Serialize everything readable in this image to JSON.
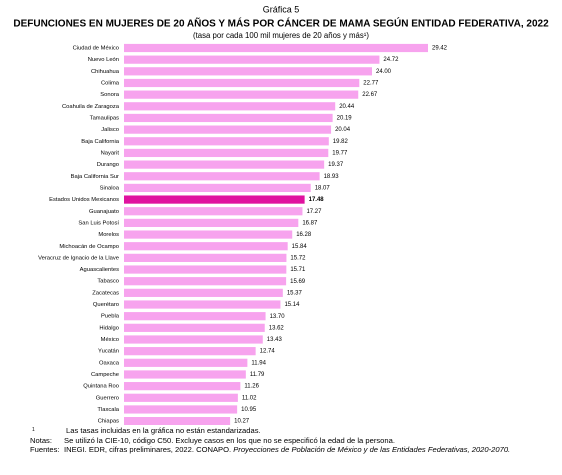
{
  "chart_data": {
    "type": "bar",
    "orientation": "horizontal",
    "label": "Gráfica 5",
    "title": "DEFUNCIONES EN MUJERES DE 20 AÑOS Y MÁS POR CÁNCER DE MAMA SEGÚN ENTIDAD FEDERATIVA, 2022",
    "subtitle": "(tasa por cada 100 mil mujeres de 20 años y más¹)",
    "categories": [
      "Ciudad de México",
      "Nuevo León",
      "Chihuahua",
      "Colima",
      "Sonora",
      "Coahuila de Zaragoza",
      "Tamaulipas",
      "Jalisco",
      "Baja California",
      "Nayarit",
      "Durango",
      "Baja California Sur",
      "Sinaloa",
      "Estados Unidos Mexicanos",
      "Guanajuato",
      "San Luis Potosí",
      "Morelos",
      "Michoacán de Ocampo",
      "Veracruz de Ignacio de la Llave",
      "Aguascalientes",
      "Tabasco",
      "Zacatecas",
      "Querétaro",
      "Puebla",
      "Hidalgo",
      "México",
      "Yucatán",
      "Oaxaca",
      "Campeche",
      "Quintana Roo",
      "Guerrero",
      "Tlaxcala",
      "Chiapas"
    ],
    "values": [
      29.42,
      24.72,
      24.0,
      22.77,
      22.67,
      20.44,
      20.19,
      20.04,
      19.82,
      19.77,
      19.37,
      18.93,
      18.07,
      17.48,
      17.27,
      16.87,
      16.28,
      15.84,
      15.72,
      15.71,
      15.69,
      15.37,
      15.14,
      13.7,
      13.62,
      13.43,
      12.74,
      11.94,
      11.79,
      11.26,
      11.02,
      10.95,
      10.27
    ],
    "value_labels": [
      "29.42",
      "24.72",
      "24.00",
      "22.77",
      "22.67",
      "20.44",
      "20.19",
      "20.04",
      "19.82",
      "19.77",
      "19.37",
      "18.93",
      "18.07",
      "17.48",
      "17.27",
      "16.87",
      "16.28",
      "15.84",
      "15.72",
      "15.71",
      "15.69",
      "15.37",
      "15.14",
      "13.70",
      "13.62",
      "13.43",
      "12.74",
      "11.94",
      "11.79",
      "11.26",
      "11.02",
      "10.95",
      "10.27"
    ],
    "colors": [
      "#f7a3ee",
      "#f7a3ee",
      "#f7a3ee",
      "#f7a3ee",
      "#f7a3ee",
      "#f7a3ee",
      "#f7a3ee",
      "#f7a3ee",
      "#f7a3ee",
      "#f7a3ee",
      "#f7a3ee",
      "#f7a3ee",
      "#f7a3ee",
      "#e0129f",
      "#f7a3ee",
      "#f7a3ee",
      "#f7a3ee",
      "#f7a3ee",
      "#f7a3ee",
      "#f7a3ee",
      "#f7a3ee",
      "#f7a3ee",
      "#f7a3ee",
      "#f7a3ee",
      "#f7a3ee",
      "#f7a3ee",
      "#f7a3ee",
      "#f7a3ee",
      "#f7a3ee",
      "#f7a3ee",
      "#f7a3ee",
      "#f7a3ee",
      "#f7a3ee"
    ],
    "notes": [
      {
        "label": "1",
        "text": [
          "Las tasas incluidas en la gráfica no están estandarizadas."
        ]
      },
      {
        "label": "Notas:",
        "text": [
          "Se utilizó la CIE-10, código C50. Excluye casos en los que no se especificó la edad de la persona."
        ]
      },
      {
        "label": "Fuentes:",
        "text": [
          "INEGI. EDR, cifras preliminares, 2022. CONAPO. ",
          "Proyecciones de Población de México y de las Entidades Federativas, 2020-2070."
        ]
      }
    ]
  }
}
